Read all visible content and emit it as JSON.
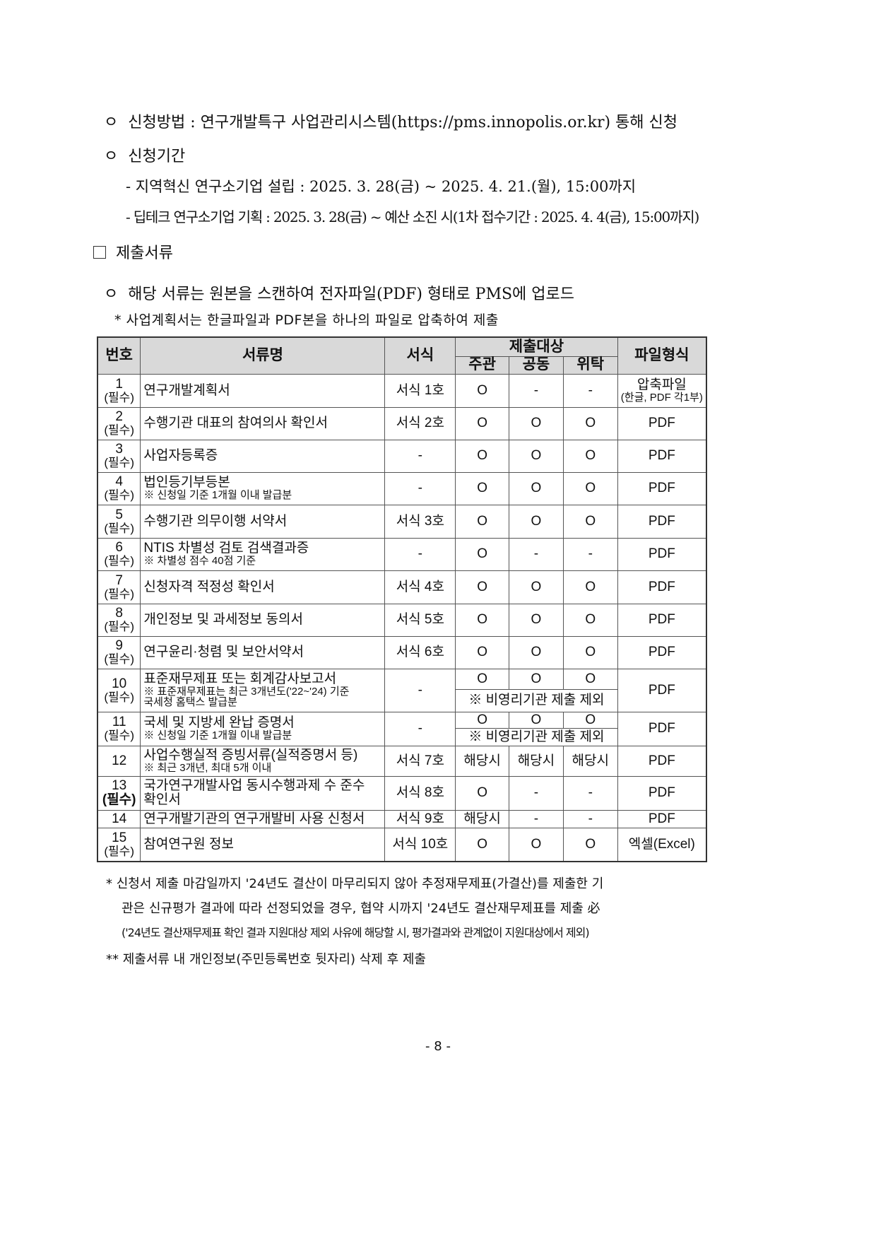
{
  "application": {
    "bullet": "ㅇ",
    "method": "신청방법 : 연구개발특구 사업관리시스템(https://pms.innopolis.or.kr) 통해 신청",
    "period_title": "신청기간",
    "period_1": "- 지역혁신 연구소기업 설립 : 2025. 3. 28(금) ~ 2025. 4. 21.(월), 15:00까지",
    "period_2": "- 딥테크 연구소기업 기획 : 2025. 3. 28(금) ~ 예산 소진 시(1차 접수기간 : 2025. 4. 4(금), 15:00까지)"
  },
  "section": {
    "title": "제출서류",
    "upload_note": "해당 서류는 원본을 스캔하여 전자파일(PDF) 형태로 PMS에 업로드",
    "zip_note": "* 사업계획서는 한글파일과 PDF본을 하나의 파일로 압축하여 제출"
  },
  "table": {
    "headers": {
      "no": "번호",
      "name": "서류명",
      "form": "서식",
      "target": "제출대상",
      "lead": "주관",
      "joint": "공동",
      "consign": "위탁",
      "file": "파일형식"
    },
    "required": "(필수)",
    "rows": [
      {
        "no": "1",
        "name": "연구개발계획서",
        "form": "서식 1호",
        "lead": "O",
        "joint": "-",
        "consign": "-",
        "file": "압축파일",
        "file_sub": "(한글, PDF 각1부)"
      },
      {
        "no": "2",
        "name": "수행기관 대표의 참여의사 확인서",
        "form": "서식 2호",
        "lead": "O",
        "joint": "O",
        "consign": "O",
        "file": "PDF"
      },
      {
        "no": "3",
        "name": "사업자등록증",
        "form": "-",
        "lead": "O",
        "joint": "O",
        "consign": "O",
        "file": "PDF"
      },
      {
        "no": "4",
        "name": "법인등기부등본",
        "sub": "※ 신청일 기준 1개월 이내 발급분",
        "form": "-",
        "lead": "O",
        "joint": "O",
        "consign": "O",
        "file": "PDF"
      },
      {
        "no": "5",
        "name": "수행기관 의무이행 서약서",
        "form": "서식 3호",
        "lead": "O",
        "joint": "O",
        "consign": "O",
        "file": "PDF"
      },
      {
        "no": "6",
        "name": "NTIS 차별성 검토 검색결과증",
        "sub": "※ 차별성 점수 40점 기준",
        "form": "-",
        "lead": "O",
        "joint": "-",
        "consign": "-",
        "file": "PDF"
      },
      {
        "no": "7",
        "name": "신청자격 적정성 확인서",
        "form": "서식 4호",
        "lead": "O",
        "joint": "O",
        "consign": "O",
        "file": "PDF"
      },
      {
        "no": "8",
        "name": "개인정보 및 과세정보 동의서",
        "form": "서식 5호",
        "lead": "O",
        "joint": "O",
        "consign": "O",
        "file": "PDF"
      },
      {
        "no": "9",
        "name": "연구윤리·청렴 및 보안서약서",
        "form": "서식 6호",
        "lead": "O",
        "joint": "O",
        "consign": "O",
        "file": "PDF"
      },
      {
        "no": "10",
        "name": "표준재무제표 또는 회계감사보고서",
        "sub": "※ 표준재무제표는 최근 3개년도('22~'24) 기준",
        "sub2": "국세청 홈택스 발급분",
        "form": "-",
        "lead": "O",
        "joint": "O",
        "consign": "O",
        "note": "※ 비영리기관 제출 제외",
        "file": "PDF"
      },
      {
        "no": "11",
        "name": "국세 및 지방세 완납 증명서",
        "sub": "※ 신청일 기준 1개월 이내 발급분",
        "form": "-",
        "lead": "O",
        "joint": "O",
        "consign": "O",
        "note": "※ 비영리기관 제출 제외",
        "file": "PDF"
      },
      {
        "no": "12",
        "name": "사업수행실적 증빙서류(실적증명서 등)",
        "sub": "※ 최근 3개년, 최대 5개 이내",
        "form": "서식 7호",
        "lead": "해당시",
        "joint": "해당시",
        "consign": "해당시",
        "file": "PDF"
      },
      {
        "no": "13",
        "name": "국가연구개발사업 동시수행과제 수 준수",
        "name2": "확인서",
        "form": "서식 8호",
        "lead": "O",
        "joint": "-",
        "consign": "-",
        "file": "PDF"
      },
      {
        "no": "14",
        "name": "연구개발기관의 연구개발비 사용 신청서",
        "form": "서식 9호",
        "lead": "해당시",
        "joint": "-",
        "consign": "-",
        "file": "PDF"
      },
      {
        "no": "15",
        "name": "참여연구원 정보",
        "form": "서식 10호",
        "lead": "O",
        "joint": "O",
        "consign": "O",
        "file": "엑셀(Excel)"
      }
    ]
  },
  "footnotes": {
    "f1": "* 신청서 제출 마감일까지 '24년도 결산이 마무리되지 않아 추정재무제표(가결산)를 제출한 기",
    "f2": "관은 신규평가 결과에 따라 선정되었을 경우, 협약 시까지 '24년도 결산재무제표를 제출 必",
    "f3": "('24년도 결산재무제표 확인 결과 지원대상 제외 사유에 해당할 시, 평가결과와 관계없이 지원대상에서 제외)",
    "f4": "** 제출서류 내 개인정보(주민등록번호 뒷자리) 삭제 후 제출"
  },
  "page_number": "- 8 -"
}
